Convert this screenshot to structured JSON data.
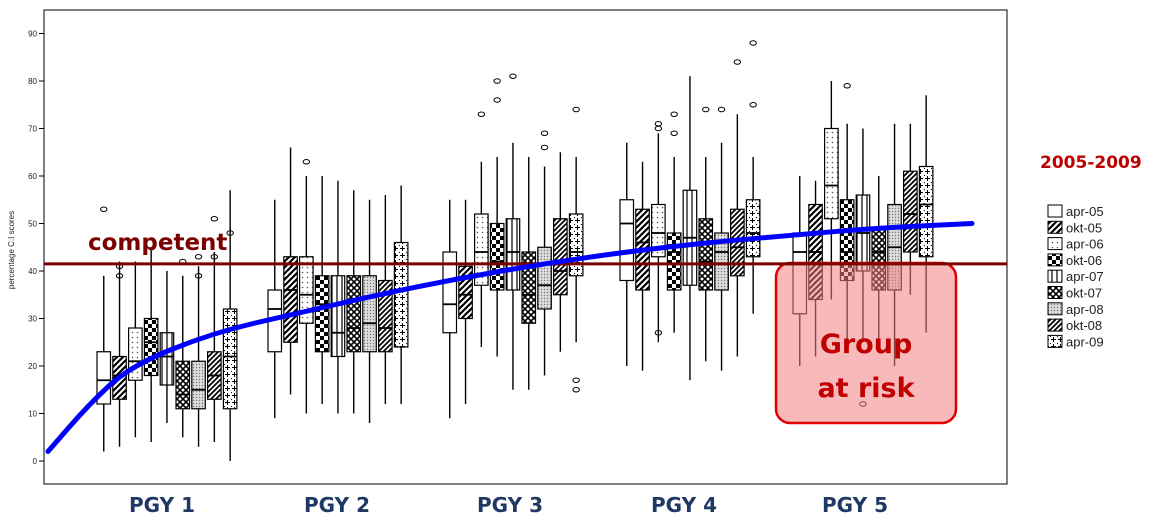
{
  "chart_data": {
    "type": "box",
    "ylabel": "percentage C:I scores",
    "ylim": [
      -3,
      96
    ],
    "y_ticks": [
      0,
      10,
      20,
      30,
      40,
      50,
      60,
      70,
      80,
      90
    ],
    "groups": [
      "PGY 1",
      "PGY 2",
      "PGY 3",
      "PGY 4",
      "PGY 5"
    ],
    "legend": {
      "title": "2005-2009",
      "entries": [
        "apr-05",
        "okt-05",
        "apr-06",
        "okt-06",
        "apr-07",
        "okt-07",
        "apr-08",
        "okt-08",
        "apr-09"
      ]
    },
    "boxes": [
      [
        [
          2,
          12,
          17,
          23,
          39
        ],
        [
          3,
          13,
          18,
          22,
          42
        ],
        [
          5,
          17,
          21,
          28,
          42
        ],
        [
          4,
          18,
          25,
          30,
          45
        ],
        [
          8,
          16,
          22,
          27,
          40
        ],
        [
          5,
          11,
          14,
          21,
          39
        ],
        [
          3,
          11,
          15,
          21,
          41
        ],
        [
          4,
          13,
          18,
          23,
          44
        ],
        [
          0,
          11,
          22,
          32,
          57
        ]
      ],
      [
        [
          9,
          23,
          32,
          36,
          55
        ],
        [
          14,
          25,
          36,
          43,
          66
        ],
        [
          10,
          29,
          35,
          43,
          60
        ],
        [
          12,
          23,
          33,
          39,
          60
        ],
        [
          10,
          22,
          27,
          39,
          59
        ],
        [
          10,
          23,
          28,
          39,
          57
        ],
        [
          8,
          23,
          29,
          39,
          55
        ],
        [
          12,
          23,
          28,
          38,
          56
        ],
        [
          12,
          24,
          36,
          46,
          58
        ]
      ],
      [
        [
          9,
          27,
          33,
          44,
          55
        ],
        [
          12,
          30,
          35,
          41,
          55
        ],
        [
          24,
          37,
          44,
          52,
          63
        ],
        [
          22,
          36,
          42,
          50,
          64
        ],
        [
          15,
          36,
          44,
          51,
          67
        ],
        [
          15,
          29,
          35,
          44,
          64
        ],
        [
          18,
          32,
          37,
          45,
          62
        ],
        [
          23,
          35,
          40,
          51,
          65
        ],
        [
          25,
          39,
          44,
          52,
          64
        ]
      ],
      [
        [
          20,
          38,
          50,
          55,
          67
        ],
        [
          19,
          36,
          46,
          53,
          63
        ],
        [
          25,
          43,
          48,
          54,
          69
        ],
        [
          27,
          36,
          44,
          48,
          64
        ],
        [
          17,
          37,
          47,
          57,
          81
        ],
        [
          21,
          36,
          42,
          51,
          64
        ],
        [
          19,
          36,
          44,
          48,
          67
        ],
        [
          22,
          39,
          45,
          53,
          73
        ],
        [
          31,
          43,
          48,
          55,
          64
        ]
      ],
      [
        [
          20,
          31,
          44,
          48,
          60
        ],
        [
          22,
          34,
          44,
          54,
          59
        ],
        [
          34,
          51,
          58,
          70,
          80
        ],
        [
          25,
          38,
          44,
          55,
          71
        ],
        [
          25,
          40,
          48,
          56,
          70
        ],
        [
          23,
          36,
          44,
          49,
          60
        ],
        [
          20,
          36,
          45,
          54,
          71
        ],
        [
          35,
          44,
          52,
          61,
          71
        ],
        [
          27,
          43,
          54,
          62,
          77
        ]
      ]
    ],
    "outliers": [
      [
        [
          0,
          53
        ],
        [
          1,
          39
        ],
        [
          1,
          41
        ],
        [
          5,
          42
        ],
        [
          6,
          39
        ],
        [
          6,
          43
        ],
        [
          7,
          43
        ],
        [
          7,
          51
        ],
        [
          8,
          48
        ]
      ],
      [
        [
          2,
          63
        ]
      ],
      [
        [
          3,
          76
        ],
        [
          3,
          80
        ],
        [
          4,
          81
        ],
        [
          2,
          73
        ],
        [
          6,
          69
        ],
        [
          6,
          66
        ],
        [
          8,
          74
        ],
        [
          8,
          15
        ],
        [
          8,
          17
        ]
      ],
      [
        [
          2,
          71
        ],
        [
          2,
          70
        ],
        [
          2,
          27
        ],
        [
          3,
          69
        ],
        [
          3,
          73
        ],
        [
          5,
          74
        ],
        [
          6,
          74
        ],
        [
          7,
          84
        ],
        [
          8,
          88
        ],
        [
          8,
          75
        ]
      ],
      [
        [
          3,
          79
        ],
        [
          4,
          12
        ]
      ]
    ],
    "competent_threshold": 41.5,
    "trend_curve": [
      [
        0.0,
        2
      ],
      [
        0.25,
        12
      ],
      [
        0.5,
        20
      ],
      [
        1.0,
        27
      ],
      [
        1.5,
        31
      ],
      [
        2.0,
        35
      ],
      [
        2.5,
        38.5
      ],
      [
        3.0,
        41.5
      ],
      [
        3.5,
        44
      ],
      [
        4.0,
        46
      ],
      [
        4.5,
        47.5
      ],
      [
        5.0,
        49
      ],
      [
        5.6,
        50
      ]
    ],
    "annotations": {
      "threshold_label": "competent",
      "risk_label_line1": "Group",
      "risk_label_line2": "at risk"
    }
  }
}
